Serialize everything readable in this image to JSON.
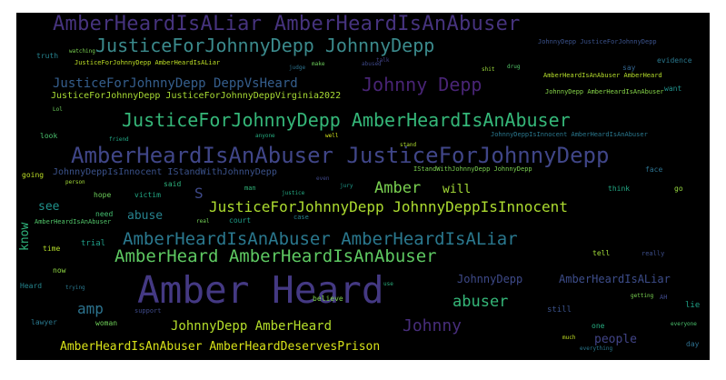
{
  "words": [
    {
      "text": "AmberHeardIsALiar AmberHeardIsAnAbuser",
      "color": "#46337e"
    },
    {
      "text": "JusticeForJohnnyDepp JohnnyDepp",
      "color": "#3b8a8c"
    },
    {
      "text": "Johnny Depp",
      "color": "#482475"
    },
    {
      "text": "JusticeForJohnnyDepp DeppVsHeard",
      "color": "#355e8d"
    },
    {
      "text": "JusticeForJohnnyDepp JusticeForJohnnyDeppVirginia2022",
      "color": "#a8db34"
    },
    {
      "text": "JusticeForJohnnyDepp AmberHeardIsAnAbuser",
      "color": "#35b779"
    },
    {
      "text": "AmberHeardIsAnAbuser JusticeForJohnnyDepp",
      "color": "#404688"
    },
    {
      "text": "Amber",
      "color": "#7ad151"
    },
    {
      "text": "will",
      "color": "#a5db36"
    },
    {
      "text": "JusticeForJohnnyDepp JohnnyDeppIsInnocent",
      "color": "#addc30"
    },
    {
      "text": "AmberHeardIsAnAbuser AmberHeardIsALiar",
      "color": "#2a788e"
    },
    {
      "text": "AmberHeard AmberHeardIsAnAbuser",
      "color": "#5ec962"
    },
    {
      "text": "Amber Heard",
      "color": "#443983"
    },
    {
      "text": "abuser",
      "color": "#35b779"
    },
    {
      "text": "amp",
      "color": "#2c738e"
    },
    {
      "text": "JohnnyDepp AmberHeard",
      "color": "#b5de2b"
    },
    {
      "text": "Johnny",
      "color": "#472d7b"
    },
    {
      "text": "AmberHeardIsAnAbuser AmberHeardDeservesPrison",
      "color": "#d8e219"
    },
    {
      "text": "JohnnyDepp",
      "color": "#3e4a89"
    },
    {
      "text": "AmberHeardIsALiar",
      "color": "#3d4d8a"
    },
    {
      "text": "people",
      "color": "#414487"
    },
    {
      "text": "JohnnyDeppIsInnocent IStandWithJohnnyDepp",
      "color": "#3b528b"
    },
    {
      "text": "IStandWithJohnnyDepp JohnnyDepp",
      "color": "#7ad151"
    },
    {
      "text": "see",
      "color": "#20928c"
    },
    {
      "text": "abuse",
      "color": "#26828e"
    },
    {
      "text": "know",
      "color": "#2fb47c"
    },
    {
      "text": "S",
      "color": "#3e4989"
    },
    {
      "text": "court",
      "color": "#1f9e89"
    },
    {
      "text": "need",
      "color": "#44bf70"
    },
    {
      "text": "hope",
      "color": "#6ccd5a"
    },
    {
      "text": "victim",
      "color": "#22a884"
    },
    {
      "text": "said",
      "color": "#2db27d"
    },
    {
      "text": "think",
      "color": "#22a884"
    },
    {
      "text": "go",
      "color": "#95d840"
    },
    {
      "text": "AmberHeardIsAnAbuser AmberHeard",
      "color": "#b5de2b"
    },
    {
      "text": "AmberHeardIsAnAbuser",
      "color": "#52c569"
    },
    {
      "text": "JohnnyDepp AmberHeardIsAnAbuser",
      "color": "#86d549"
    },
    {
      "text": "JohnnyDeppIsInnocent AmberHeardIsAnAbuser",
      "color": "#2a788e"
    },
    {
      "text": "JohnnyDepp JusticeForJohnnyDepp",
      "color": "#3b528b"
    },
    {
      "text": "JusticeForJohnnyDepp AmberHeardIsALiar",
      "color": "#bddf26"
    },
    {
      "text": "evidence",
      "color": "#2a788e"
    },
    {
      "text": "say",
      "color": "#32648e"
    },
    {
      "text": "want",
      "color": "#21918c"
    },
    {
      "text": "watching",
      "color": "#7ad151"
    },
    {
      "text": "truth",
      "color": "#26828e"
    },
    {
      "text": "trial",
      "color": "#1f9e89"
    },
    {
      "text": "time",
      "color": "#b5de2b"
    },
    {
      "text": "look",
      "color": "#4ac16d"
    },
    {
      "text": "going",
      "color": "#bddf26"
    },
    {
      "text": "Heard",
      "color": "#25858e"
    },
    {
      "text": "lawyer",
      "color": "#2a788e"
    },
    {
      "text": "woman",
      "color": "#6ece58"
    },
    {
      "text": "now",
      "color": "#8fd744"
    },
    {
      "text": "support",
      "color": "#3e4a89"
    },
    {
      "text": "believe",
      "color": "#7fd34e"
    },
    {
      "text": "still",
      "color": "#3b528b"
    },
    {
      "text": "one",
      "color": "#27ad81"
    },
    {
      "text": "tell",
      "color": "#a0da39"
    },
    {
      "text": "lie",
      "color": "#1fa187"
    },
    {
      "text": "day",
      "color": "#2e6f8e"
    },
    {
      "text": "AH",
      "color": "#3e4989"
    },
    {
      "text": "face",
      "color": "#2c718e"
    },
    {
      "text": "man",
      "color": "#31b57b"
    },
    {
      "text": "case",
      "color": "#26828e"
    },
    {
      "text": "jury",
      "color": "#1f998a"
    },
    {
      "text": "judge",
      "color": "#2c728e"
    },
    {
      "text": "drug",
      "color": "#52c569"
    },
    {
      "text": "well",
      "color": "#d0e11c"
    },
    {
      "text": "anyone",
      "color": "#26ad81"
    },
    {
      "text": "friend",
      "color": "#22a785"
    },
    {
      "text": "really",
      "color": "#3d4e8a"
    },
    {
      "text": "make",
      "color": "#6ccd5a"
    },
    {
      "text": "person",
      "color": "#a2da37"
    },
    {
      "text": "justice",
      "color": "#24aa83"
    },
    {
      "text": "real",
      "color": "#73d056"
    },
    {
      "text": "stand",
      "color": "#b0dd2f"
    },
    {
      "text": "even",
      "color": "#3f4788"
    },
    {
      "text": "getting",
      "color": "#7ad151"
    },
    {
      "text": "much",
      "color": "#c2df23"
    },
    {
      "text": "everyone",
      "color": "#4ac16d"
    },
    {
      "text": "everything",
      "color": "#2a788e"
    },
    {
      "text": "Lol",
      "color": "#6ccd5a"
    },
    {
      "text": "use",
      "color": "#2ab07f"
    },
    {
      "text": "talk",
      "color": "#424186"
    },
    {
      "text": "shit",
      "color": "#9bd93c"
    },
    {
      "text": "abused",
      "color": "#3e4989"
    },
    {
      "text": "trying",
      "color": "#2a788e"
    }
  ]
}
